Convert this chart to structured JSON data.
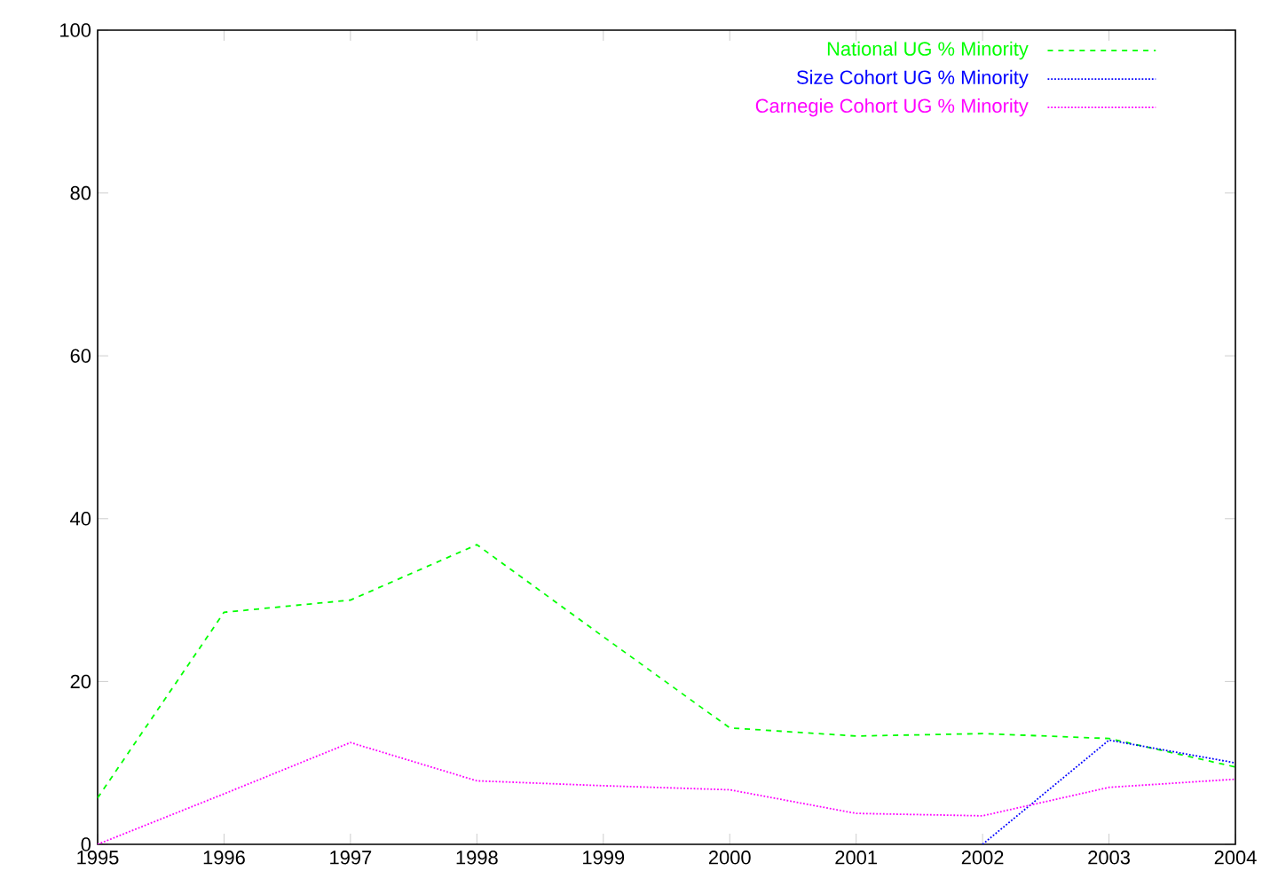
{
  "chart_data": {
    "type": "line",
    "x": [
      1995,
      1996,
      1997,
      1998,
      1999,
      2000,
      2001,
      2002,
      2003,
      2004
    ],
    "xlim": [
      1995,
      2004
    ],
    "xticks": [
      1995,
      1996,
      1997,
      1998,
      1999,
      2000,
      2001,
      2002,
      2003,
      2004
    ],
    "ylim": [
      0,
      100
    ],
    "yticks": [
      0,
      20,
      40,
      60,
      80,
      100
    ],
    "legend": "top right",
    "series": [
      {
        "name": "National UG % Minority",
        "color": "#00ff00",
        "line_style": "dashed",
        "values": [
          5.7,
          28.5,
          30,
          36.8,
          25.5,
          14.3,
          13.3,
          13.6,
          13.0,
          9.5
        ]
      },
      {
        "name": "Size Cohort UG % Minority",
        "color": "#0000ff",
        "line_style": "dotted",
        "values": [
          null,
          null,
          null,
          null,
          null,
          null,
          null,
          0,
          12.8,
          10.0
        ]
      },
      {
        "name": "Carnegie Cohort UG % Minority",
        "color": "#ff00ff",
        "line_style": "dotted",
        "values": [
          0,
          6.2,
          12.5,
          7.8,
          7.2,
          6.7,
          3.8,
          3.5,
          7.0,
          8.0
        ]
      }
    ]
  }
}
